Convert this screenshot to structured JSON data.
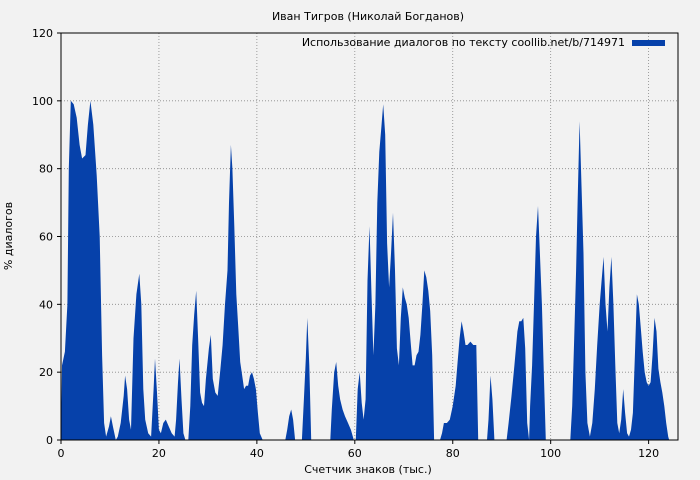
{
  "chart_data": {
    "type": "area",
    "title": "Иван Тигров (Николай Богданов)",
    "xlabel": "Счетчик знаков (тыс.)",
    "ylabel": "% диалогов",
    "xlim": [
      0,
      126
    ],
    "ylim": [
      0,
      120
    ],
    "xticks": [
      0,
      20,
      40,
      60,
      80,
      100,
      120
    ],
    "yticks": [
      0,
      20,
      40,
      60,
      80,
      100,
      120
    ],
    "grid": true,
    "legend_position": "top-right",
    "series": [
      {
        "name": "Использование диалогов по тексту coollib.net/b/714971",
        "color": "#0641aa",
        "points": [
          [
            0,
            0
          ],
          [
            0.2,
            22
          ],
          [
            0.8,
            26
          ],
          [
            1.3,
            40
          ],
          [
            1.6,
            80
          ],
          [
            2,
            100
          ],
          [
            2.6,
            99
          ],
          [
            3.2,
            95
          ],
          [
            3.8,
            87
          ],
          [
            4.3,
            83
          ],
          [
            5,
            84
          ],
          [
            5.5,
            93
          ],
          [
            6,
            100
          ],
          [
            6.6,
            93
          ],
          [
            7.3,
            78
          ],
          [
            7.9,
            60
          ],
          [
            8.4,
            25
          ],
          [
            8.8,
            5
          ],
          [
            9.2,
            1
          ],
          [
            9.8,
            4
          ],
          [
            10.2,
            7
          ],
          [
            10.6,
            4
          ],
          [
            11.2,
            0
          ],
          [
            11.6,
            1
          ],
          [
            12.2,
            5
          ],
          [
            12.8,
            13
          ],
          [
            13.1,
            19
          ],
          [
            13.5,
            15
          ],
          [
            13.9,
            6
          ],
          [
            14.3,
            3
          ],
          [
            14.8,
            30
          ],
          [
            15.4,
            43
          ],
          [
            16,
            49
          ],
          [
            16.4,
            40
          ],
          [
            16.8,
            15
          ],
          [
            17.2,
            6
          ],
          [
            17.8,
            2
          ],
          [
            18.4,
            1
          ],
          [
            18.9,
            15
          ],
          [
            19.2,
            24
          ],
          [
            19.6,
            14
          ],
          [
            20,
            3
          ],
          [
            20.4,
            2
          ],
          [
            20.9,
            5
          ],
          [
            21.4,
            6
          ],
          [
            22,
            4
          ],
          [
            22.6,
            2
          ],
          [
            23.2,
            1
          ],
          [
            23.5,
            6
          ],
          [
            23.9,
            17
          ],
          [
            24.2,
            24
          ],
          [
            24.6,
            12
          ],
          [
            25,
            2
          ],
          [
            25.4,
            0
          ],
          [
            26,
            0
          ],
          [
            26.4,
            10
          ],
          [
            26.8,
            28
          ],
          [
            27.2,
            37
          ],
          [
            27.6,
            44
          ],
          [
            28,
            30
          ],
          [
            28.4,
            14
          ],
          [
            28.8,
            11
          ],
          [
            29.2,
            10
          ],
          [
            29.6,
            18
          ],
          [
            30.2,
            27
          ],
          [
            30.6,
            31
          ],
          [
            31,
            18
          ],
          [
            31.5,
            14
          ],
          [
            32,
            13
          ],
          [
            32.5,
            20
          ],
          [
            33,
            28
          ],
          [
            33.5,
            40
          ],
          [
            34,
            50
          ],
          [
            34.3,
            70
          ],
          [
            34.7,
            87
          ],
          [
            35,
            80
          ],
          [
            35.4,
            63
          ],
          [
            35.8,
            43
          ],
          [
            36.2,
            33
          ],
          [
            36.6,
            23
          ],
          [
            37,
            19
          ],
          [
            37.4,
            15
          ],
          [
            37.8,
            16
          ],
          [
            38.2,
            16
          ],
          [
            38.6,
            19
          ],
          [
            39,
            20
          ],
          [
            39.4,
            18
          ],
          [
            39.8,
            15
          ],
          [
            40.2,
            8
          ],
          [
            40.6,
            2
          ],
          [
            41.2,
            0
          ],
          [
            45.8,
            0
          ],
          [
            46.2,
            3
          ],
          [
            46.6,
            7
          ],
          [
            47,
            9
          ],
          [
            47.4,
            6
          ],
          [
            47.8,
            0
          ],
          [
            49.2,
            0
          ],
          [
            49.6,
            12
          ],
          [
            50,
            24
          ],
          [
            50.3,
            36
          ],
          [
            50.7,
            22
          ],
          [
            51.1,
            0
          ],
          [
            55,
            0
          ],
          [
            55.3,
            9
          ],
          [
            55.8,
            20
          ],
          [
            56.2,
            23
          ],
          [
            56.6,
            16
          ],
          [
            57,
            12
          ],
          [
            57.5,
            9
          ],
          [
            58,
            7
          ],
          [
            58.6,
            5
          ],
          [
            59.2,
            3
          ],
          [
            59.8,
            0
          ],
          [
            60.2,
            0
          ],
          [
            60.6,
            15
          ],
          [
            61,
            20
          ],
          [
            61.4,
            11
          ],
          [
            61.8,
            6
          ],
          [
            62.2,
            12
          ],
          [
            62.6,
            47
          ],
          [
            63,
            63
          ],
          [
            63.4,
            43
          ],
          [
            63.8,
            25
          ],
          [
            64.2,
            40
          ],
          [
            64.6,
            70
          ],
          [
            65,
            85
          ],
          [
            65.4,
            92
          ],
          [
            65.8,
            99
          ],
          [
            66.2,
            90
          ],
          [
            66.6,
            58
          ],
          [
            67,
            45
          ],
          [
            67.4,
            55
          ],
          [
            67.8,
            67
          ],
          [
            68.2,
            50
          ],
          [
            68.6,
            27
          ],
          [
            69,
            22
          ],
          [
            69.4,
            36
          ],
          [
            69.8,
            45
          ],
          [
            70.2,
            42
          ],
          [
            70.6,
            40
          ],
          [
            71,
            36
          ],
          [
            71.4,
            29
          ],
          [
            71.8,
            22
          ],
          [
            72.2,
            22
          ],
          [
            72.6,
            25
          ],
          [
            73,
            26
          ],
          [
            73.4,
            31
          ],
          [
            73.8,
            40
          ],
          [
            74.2,
            50
          ],
          [
            74.6,
            48
          ],
          [
            75,
            44
          ],
          [
            75.4,
            38
          ],
          [
            75.8,
            25
          ],
          [
            76.2,
            0
          ],
          [
            77.4,
            0
          ],
          [
            77.8,
            2
          ],
          [
            78.2,
            5
          ],
          [
            78.8,
            5
          ],
          [
            79.4,
            6
          ],
          [
            80,
            10
          ],
          [
            80.6,
            16
          ],
          [
            81,
            23
          ],
          [
            81.4,
            30
          ],
          [
            81.8,
            35
          ],
          [
            82.2,
            32
          ],
          [
            82.6,
            28
          ],
          [
            83,
            28
          ],
          [
            83.6,
            29
          ],
          [
            84.2,
            28
          ],
          [
            84.8,
            28
          ],
          [
            85.2,
            0
          ],
          [
            87,
            0
          ],
          [
            87.3,
            6
          ],
          [
            87.7,
            19
          ],
          [
            88.1,
            12
          ],
          [
            88.5,
            0
          ],
          [
            91,
            0
          ],
          [
            91.4,
            5
          ],
          [
            92,
            13
          ],
          [
            92.6,
            22
          ],
          [
            93.2,
            32
          ],
          [
            93.6,
            35
          ],
          [
            94,
            35
          ],
          [
            94.4,
            36
          ],
          [
            94.8,
            27
          ],
          [
            95.2,
            5
          ],
          [
            95.6,
            0
          ],
          [
            95.8,
            10
          ],
          [
            96.2,
            22
          ],
          [
            96.6,
            40
          ],
          [
            97,
            60
          ],
          [
            97.4,
            69
          ],
          [
            97.8,
            55
          ],
          [
            98.2,
            40
          ],
          [
            98.6,
            20
          ],
          [
            99,
            0
          ],
          [
            104,
            0
          ],
          [
            104.4,
            10
          ],
          [
            104.8,
            30
          ],
          [
            105.2,
            50
          ],
          [
            105.5,
            70
          ],
          [
            105.9,
            94
          ],
          [
            106.3,
            75
          ],
          [
            106.7,
            55
          ],
          [
            107.1,
            20
          ],
          [
            107.5,
            5
          ],
          [
            108,
            1
          ],
          [
            108.5,
            5
          ],
          [
            109,
            15
          ],
          [
            109.5,
            28
          ],
          [
            110,
            40
          ],
          [
            110.4,
            47
          ],
          [
            110.8,
            54
          ],
          [
            111.2,
            40
          ],
          [
            111.6,
            32
          ],
          [
            112,
            45
          ],
          [
            112.4,
            54
          ],
          [
            112.8,
            40
          ],
          [
            113.2,
            22
          ],
          [
            113.6,
            5
          ],
          [
            114,
            2
          ],
          [
            114.4,
            6
          ],
          [
            114.8,
            15
          ],
          [
            115.2,
            8
          ],
          [
            115.6,
            2
          ],
          [
            116,
            1
          ],
          [
            116.4,
            3
          ],
          [
            116.8,
            8
          ],
          [
            117.2,
            25
          ],
          [
            117.6,
            43
          ],
          [
            118,
            40
          ],
          [
            118.4,
            33
          ],
          [
            118.8,
            26
          ],
          [
            119.2,
            20
          ],
          [
            119.6,
            17
          ],
          [
            120,
            16
          ],
          [
            120.4,
            17
          ],
          [
            120.8,
            25
          ],
          [
            121.2,
            36
          ],
          [
            121.6,
            32
          ],
          [
            122,
            21
          ],
          [
            122.4,
            17
          ],
          [
            122.8,
            14
          ],
          [
            123.2,
            10
          ],
          [
            123.6,
            5
          ],
          [
            124,
            1
          ],
          [
            124.2,
            0
          ]
        ]
      }
    ]
  }
}
